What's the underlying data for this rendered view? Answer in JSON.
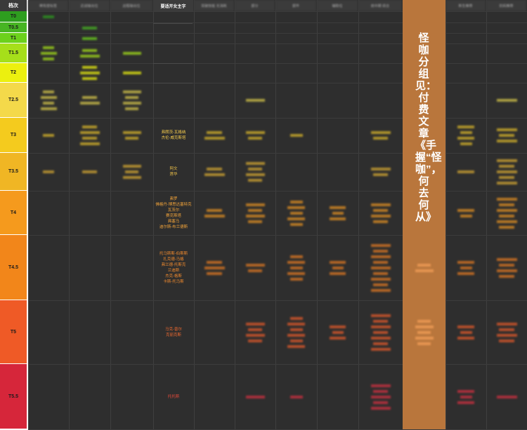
{
  "tier_header": "档次",
  "tiers": [
    {
      "label": "T0",
      "color": "#2e9e1f"
    },
    {
      "label": "T0.5",
      "color": "#47b523"
    },
    {
      "label": "T1",
      "color": "#6cd11c"
    },
    {
      "label": "T1.5",
      "color": "#a6df1a"
    },
    {
      "label": "T2",
      "color": "#ecf00f"
    },
    {
      "label": "T2.5",
      "color": "#f4d94a"
    },
    {
      "label": "T3",
      "color": "#f4cb1e"
    },
    {
      "label": "T3.5",
      "color": "#f0b624"
    },
    {
      "label": "T4",
      "color": "#f59a1d"
    },
    {
      "label": "T4.5",
      "color": "#f2861a"
    },
    {
      "label": "T5",
      "color": "#ef5a26"
    },
    {
      "label": "T5.5",
      "color": "#d6263a"
    }
  ],
  "column_headers": [
    "稀有度标签",
    "近战输出位",
    "远程输出位",
    "要适开女主字",
    "突破技能 无消耗",
    "部分",
    "部件",
    "辅助位",
    "前中期 综合",
    "推荐",
    "新生推荐",
    "奶妈推荐"
  ],
  "center_column": {
    "T3": [
      "弗朗茨-瓦格纳",
      "杰伦-威克斯塔"
    ],
    "T3.5": [
      "阿文",
      "莲华"
    ],
    "T4": [
      "弗罗",
      "佛格丹-博思达塞特克",
      "瓦茨尔",
      "赛克斯塔",
      "弗塞马",
      "迪尔斯-布兰德斯"
    ],
    "T4.5": [
      "托马斯斯-伯斯斯",
      "扎克德-马格",
      "弗兰德-托斯克",
      "兰迪斯",
      "杰克-格斯",
      "卡斯-托马斯"
    ],
    "T5": [
      "马克-普尔",
      "克丽克斯"
    ],
    "T5.5": [
      "托托斯"
    ]
  },
  "vertical_banner": "怪咖分组见：付费文章《手握“怪咖”，何去何从》",
  "colors": {
    "background": "#2e2e2e",
    "banner": "#b9763c",
    "header": "#3b3b3b"
  }
}
